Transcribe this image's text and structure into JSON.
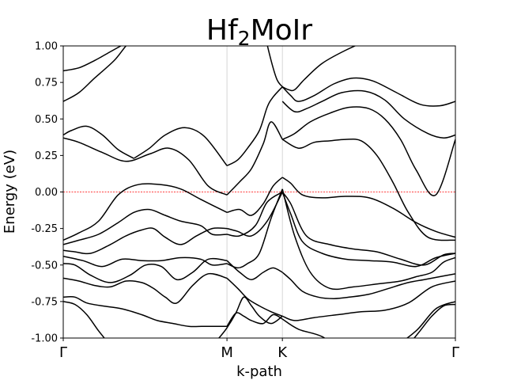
{
  "chart_data": {
    "type": "line",
    "title": {
      "main": "Hf",
      "sub": "2",
      "rest": "MoIr"
    },
    "xlabel": "k-path",
    "ylabel": "Energy (eV)",
    "xlim": [
      0,
      1
    ],
    "ylim": [
      -1.0,
      1.0
    ],
    "xticks": [
      {
        "label": "Γ",
        "x": 0.0
      },
      {
        "label": "M",
        "x": 0.4175
      },
      {
        "label": "K",
        "x": 0.5588
      },
      {
        "label": "Γ",
        "x": 1.0
      }
    ],
    "yticks": [
      "-1.00",
      "-0.75",
      "-0.50",
      "-0.25",
      "0.00",
      "0.25",
      "0.50",
      "0.75",
      "1.00"
    ],
    "ytick_values": [
      -1.0,
      -0.75,
      -0.5,
      -0.25,
      0.0,
      0.25,
      0.5,
      0.75,
      1.0
    ],
    "fermi_level": 0.0,
    "fermi_color": "#ff0000",
    "band_color": "#000000",
    "vline_color": "#cccccc",
    "series": [
      {
        "x": [
          0,
          0.04,
          0.08,
          0.13,
          0.18,
          0.25,
          0.32,
          0.38,
          0.4175
        ],
        "y": [
          0.62,
          0.68,
          0.78,
          0.9,
          1.05,
          1.1,
          1.1,
          1.1,
          1.1
        ]
      },
      {
        "x": [
          0,
          0.04,
          0.08,
          0.12,
          0.16
        ],
        "y": [
          0.83,
          0.85,
          0.9,
          0.96,
          1.02
        ]
      },
      {
        "x": [
          0,
          0.02,
          0.06,
          0.1,
          0.14,
          0.18
        ],
        "y": [
          0.39,
          0.42,
          0.45,
          0.39,
          0.29,
          0.23
        ]
      },
      {
        "x": [
          0.18,
          0.22,
          0.26,
          0.31,
          0.36,
          0.4175
        ],
        "y": [
          0.23,
          0.3,
          0.39,
          0.44,
          0.38,
          0.18
        ]
      },
      {
        "x": [
          0,
          0.04,
          0.1,
          0.16,
          0.22,
          0.27,
          0.32,
          0.37,
          0.4175
        ],
        "y": [
          0.37,
          0.34,
          0.27,
          0.21,
          0.26,
          0.3,
          0.22,
          0.04,
          -0.02
        ]
      },
      {
        "x": [
          0.4175,
          0.445,
          0.47,
          0.5,
          0.52,
          0.535,
          0.5588
        ],
        "y": [
          0.18,
          0.22,
          0.3,
          0.42,
          0.58,
          0.65,
          0.72
        ]
      },
      {
        "x": [
          0.4175,
          0.45,
          0.48,
          0.51,
          0.53,
          0.5588
        ],
        "y": [
          -0.02,
          0.07,
          0.16,
          0.33,
          0.48,
          0.36
        ]
      },
      {
        "x": [
          0.512,
          0.53,
          0.545,
          0.5588
        ],
        "y": [
          1.1,
          0.9,
          0.77,
          0.72
        ]
      },
      {
        "x": [
          0.5588,
          0.575,
          0.59,
          0.615,
          0.66,
          0.72,
          0.79,
          0.86,
          0.93,
          1.0
        ],
        "y": [
          0.72,
          0.7,
          0.7,
          0.77,
          0.88,
          0.97,
          1.05,
          1.1,
          1.1,
          1.1
        ]
      },
      {
        "x": [
          0.5588,
          0.58,
          0.6,
          0.64,
          0.69,
          0.74,
          0.79,
          0.85,
          0.91,
          0.96,
          1.0
        ],
        "y": [
          0.72,
          0.66,
          0.62,
          0.66,
          0.74,
          0.78,
          0.76,
          0.68,
          0.6,
          0.59,
          0.62
        ]
      },
      {
        "x": [
          0.5588,
          0.59,
          0.62,
          0.66,
          0.71,
          0.77,
          0.82,
          0.87,
          0.93,
          0.97,
          1.0
        ],
        "y": [
          0.62,
          0.55,
          0.57,
          0.62,
          0.68,
          0.69,
          0.63,
          0.5,
          0.4,
          0.37,
          0.39
        ]
      },
      {
        "x": [
          0.5588,
          0.59,
          0.63,
          0.68,
          0.73,
          0.78,
          0.82,
          0.86,
          0.9,
          0.95,
          1.0
        ],
        "y": [
          0.36,
          0.4,
          0.48,
          0.54,
          0.58,
          0.57,
          0.5,
          0.36,
          0.15,
          -0.02,
          0.36
        ]
      },
      {
        "x": [
          0.5588,
          0.6,
          0.64,
          0.68,
          0.72,
          0.76,
          0.8,
          0.84,
          0.88,
          0.93,
          1.0
        ],
        "y": [
          0.36,
          0.3,
          0.34,
          0.35,
          0.36,
          0.35,
          0.25,
          0.07,
          -0.14,
          -0.31,
          -0.33
        ]
      },
      {
        "x": [
          0,
          0.04,
          0.09,
          0.14,
          0.19,
          0.25,
          0.3,
          0.35,
          0.4175
        ],
        "y": [
          -0.33,
          -0.28,
          -0.2,
          -0.02,
          0.05,
          0.05,
          0.02,
          -0.05,
          -0.14
        ]
      },
      {
        "x": [
          0.4175,
          0.45,
          0.48,
          0.51,
          0.535,
          0.5588
        ],
        "y": [
          -0.14,
          -0.12,
          -0.16,
          -0.08,
          0.04,
          0.1
        ]
      },
      {
        "x": [
          0.5588,
          0.58,
          0.61,
          0.66,
          0.72,
          0.78,
          0.84,
          0.9,
          0.95,
          1.0
        ],
        "y": [
          0.1,
          0.06,
          -0.02,
          -0.04,
          -0.03,
          -0.04,
          -0.11,
          -0.21,
          -0.27,
          -0.31
        ]
      },
      {
        "x": [
          0,
          0.04,
          0.09,
          0.14,
          0.18,
          0.22,
          0.26,
          0.3,
          0.35,
          0.38,
          0.4175
        ],
        "y": [
          -0.36,
          -0.33,
          -0.29,
          -0.21,
          -0.14,
          -0.12,
          -0.16,
          -0.2,
          -0.23,
          -0.29,
          -0.29
        ]
      },
      {
        "x": [
          0.4175,
          0.45,
          0.49,
          0.52,
          0.5588
        ],
        "y": [
          -0.29,
          -0.3,
          -0.23,
          -0.07,
          0.0
        ]
      },
      {
        "x": [
          0.5588,
          0.58,
          0.62,
          0.68,
          0.74,
          0.8,
          0.86,
          0.92,
          0.97,
          1.0
        ],
        "y": [
          0.0,
          -0.08,
          -0.3,
          -0.36,
          -0.39,
          -0.41,
          -0.46,
          -0.5,
          -0.43,
          -0.42
        ]
      },
      {
        "x": [
          0,
          0.03,
          0.07,
          0.12,
          0.16,
          0.2,
          0.23,
          0.26,
          0.3,
          0.34,
          0.38,
          0.4175
        ],
        "y": [
          -0.4,
          -0.41,
          -0.42,
          -0.36,
          -0.3,
          -0.26,
          -0.25,
          -0.31,
          -0.36,
          -0.3,
          -0.25,
          -0.25
        ]
      },
      {
        "x": [
          0.4175,
          0.445,
          0.48,
          0.52,
          0.5588
        ],
        "y": [
          -0.25,
          -0.27,
          -0.3,
          -0.2,
          0.0
        ]
      },
      {
        "x": [
          0.5588,
          0.58,
          0.61,
          0.66,
          0.72,
          0.78,
          0.84,
          0.9,
          0.95,
          1.0
        ],
        "y": [
          0.0,
          -0.15,
          -0.34,
          -0.42,
          -0.46,
          -0.47,
          -0.48,
          -0.51,
          -0.45,
          -0.42
        ]
      },
      {
        "x": [
          0,
          0.05,
          0.1,
          0.15,
          0.2,
          0.25,
          0.3,
          0.35,
          0.38,
          0.4175
        ],
        "y": [
          -0.44,
          -0.47,
          -0.51,
          -0.46,
          -0.47,
          -0.47,
          -0.45,
          -0.46,
          -0.5,
          -0.49
        ]
      },
      {
        "x": [
          0.4175,
          0.445,
          0.47,
          0.5,
          0.53,
          0.5588
        ],
        "y": [
          -0.49,
          -0.52,
          -0.49,
          -0.42,
          -0.18,
          0.02
        ]
      },
      {
        "x": [
          0.5588,
          0.59,
          0.63,
          0.68,
          0.74,
          0.8,
          0.86,
          0.9,
          0.94,
          0.97,
          1.0
        ],
        "y": [
          0.02,
          -0.3,
          -0.55,
          -0.66,
          -0.65,
          -0.63,
          -0.61,
          -0.58,
          -0.55,
          -0.48,
          -0.45
        ]
      },
      {
        "x": [
          0,
          0.03,
          0.07,
          0.12,
          0.17,
          0.21,
          0.25,
          0.29,
          0.33,
          0.37,
          0.4175
        ],
        "y": [
          -0.49,
          -0.5,
          -0.57,
          -0.62,
          -0.57,
          -0.5,
          -0.51,
          -0.6,
          -0.55,
          -0.46,
          -0.47
        ]
      },
      {
        "x": [
          0.4175,
          0.45,
          0.48,
          0.51,
          0.535,
          0.5588
        ],
        "y": [
          -0.47,
          -0.55,
          -0.6,
          -0.55,
          -0.52,
          -0.55
        ]
      },
      {
        "x": [
          0.5588,
          0.58,
          0.61,
          0.65,
          0.69,
          0.73,
          0.78,
          0.83,
          0.88,
          0.92,
          0.96,
          1.0
        ],
        "y": [
          -0.55,
          -0.6,
          -0.68,
          -0.72,
          -0.73,
          -0.72,
          -0.7,
          -0.66,
          -0.62,
          -0.6,
          -0.58,
          -0.56
        ]
      },
      {
        "x": [
          0,
          0.04,
          0.08,
          0.12,
          0.16,
          0.2,
          0.23,
          0.26,
          0.29,
          0.33,
          0.37,
          0.4175
        ],
        "y": [
          -0.59,
          -0.61,
          -0.64,
          -0.65,
          -0.61,
          -0.62,
          -0.66,
          -0.72,
          -0.76,
          -0.64,
          -0.56,
          -0.59
        ]
      },
      {
        "x": [
          0.4175,
          0.445,
          0.47,
          0.5,
          0.53,
          0.5588
        ],
        "y": [
          -0.59,
          -0.66,
          -0.73,
          -0.78,
          -0.82,
          -0.85
        ]
      },
      {
        "x": [
          0.5588,
          0.59,
          0.64,
          0.7,
          0.76,
          0.82,
          0.88,
          0.94,
          1.0
        ],
        "y": [
          -0.85,
          -0.88,
          -0.86,
          -0.84,
          -0.82,
          -0.81,
          -0.76,
          -0.65,
          -0.61
        ]
      },
      {
        "x": [
          0,
          0.03,
          0.06,
          0.1,
          0.15,
          0.2,
          0.24,
          0.28,
          0.32,
          0.36,
          0.4175
        ],
        "y": [
          -0.72,
          -0.72,
          -0.76,
          -0.78,
          -0.8,
          -0.84,
          -0.88,
          -0.9,
          -0.92,
          -0.92,
          -0.92
        ]
      },
      {
        "x": [
          0.4175,
          0.44,
          0.46,
          0.48,
          0.51,
          0.535,
          0.5588
        ],
        "y": [
          -0.92,
          -0.83,
          -0.85,
          -0.88,
          -0.9,
          -0.84,
          -0.87
        ]
      },
      {
        "x": [
          0.5588,
          0.6,
          0.66,
          0.72,
          0.78,
          0.84,
          0.9,
          0.95,
          1.0
        ],
        "y": [
          -0.87,
          -0.94,
          -0.99,
          -1.1,
          -1.1,
          -1.06,
          -0.95,
          -0.8,
          -0.75
        ]
      },
      {
        "x": [
          0,
          0.03,
          0.06,
          0.09,
          0.12
        ],
        "y": [
          -0.75,
          -0.77,
          -0.84,
          -0.95,
          -1.05
        ]
      },
      {
        "x": [
          0.38,
          0.4,
          0.4175,
          0.44,
          0.46,
          0.48,
          0.5,
          0.53,
          0.5588
        ],
        "y": [
          -1.05,
          -0.99,
          -0.93,
          -0.83,
          -0.72,
          -0.78,
          -0.85,
          -0.9,
          -0.85
        ]
      },
      {
        "x": [
          0.88,
          0.91,
          0.94,
          0.97,
          1.0
        ],
        "y": [
          -1.05,
          -0.95,
          -0.85,
          -0.78,
          -0.77
        ]
      }
    ]
  }
}
